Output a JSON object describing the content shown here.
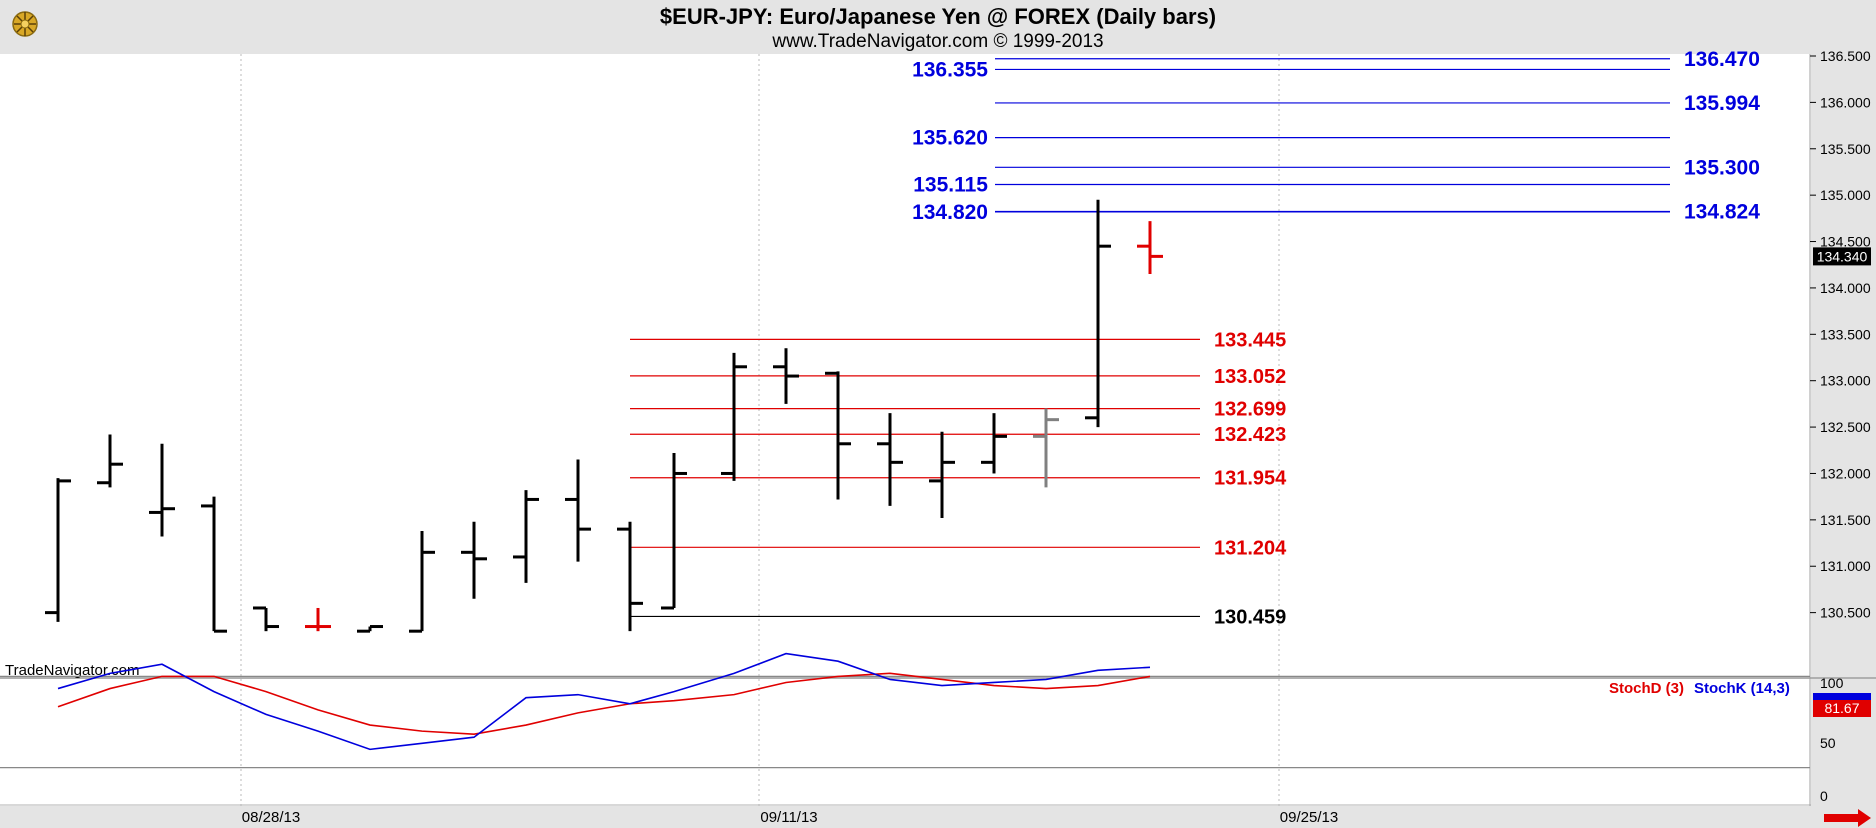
{
  "title": "$EUR-JPY:  Euro/Japanese Yen @ FOREX  (Daily bars)",
  "subtitle": "www.TradeNavigator.com © 1999-2013",
  "watermark": "TradeNavigator.com",
  "last_price": "134.340",
  "colors": {
    "up_bar": "#000000",
    "down_bar": "#e00000",
    "partial_bar": "#808080",
    "blue_level": "#0000dd",
    "red_level": "#e00000",
    "stoch_d": "#e00000",
    "stoch_k": "#0000dd"
  },
  "chart_data": [
    {
      "type": "ohlc",
      "title": "$EUR-JPY:  Euro/Japanese Yen @ FOREX  (Daily bars)",
      "y_ticks": [
        "136.500",
        "136.000",
        "135.500",
        "135.000",
        "134.500",
        "134.000",
        "133.500",
        "133.000",
        "132.500",
        "132.000",
        "131.500",
        "131.000",
        "130.500"
      ],
      "x_ticks": [
        "08/28/13",
        "09/11/13",
        "09/25/13"
      ],
      "ylim": [
        130.4,
        136.7
      ],
      "bars": [
        {
          "o": 130.5,
          "h": 131.95,
          "l": 130.4,
          "c": 131.92,
          "color": "up"
        },
        {
          "o": 131.9,
          "h": 132.42,
          "l": 131.85,
          "c": 132.1,
          "color": "up"
        },
        {
          "o": 131.58,
          "h": 132.32,
          "l": 131.32,
          "c": 131.62,
          "color": "up"
        },
        {
          "o": 131.65,
          "h": 131.75,
          "l": 130.3,
          "c": 130.3,
          "color": "up"
        },
        {
          "o": 130.55,
          "h": 130.55,
          "l": 130.3,
          "c": 130.35,
          "color": "up"
        },
        {
          "o": 130.35,
          "h": 130.55,
          "l": 130.3,
          "c": 130.35,
          "color": "down"
        },
        {
          "o": 130.3,
          "h": 130.35,
          "l": 130.3,
          "c": 130.35,
          "color": "up"
        },
        {
          "o": 130.3,
          "h": 131.38,
          "l": 130.3,
          "c": 131.15,
          "color": "up"
        },
        {
          "o": 131.15,
          "h": 131.48,
          "l": 130.65,
          "c": 131.08,
          "color": "up"
        },
        {
          "o": 131.1,
          "h": 131.82,
          "l": 130.82,
          "c": 131.72,
          "color": "up"
        },
        {
          "o": 131.72,
          "h": 132.15,
          "l": 131.05,
          "c": 131.4,
          "color": "up"
        },
        {
          "o": 131.4,
          "h": 131.48,
          "l": 130.3,
          "c": 130.6,
          "color": "up"
        },
        {
          "o": 130.55,
          "h": 132.22,
          "l": 130.55,
          "c": 132.0,
          "color": "up"
        },
        {
          "o": 132.0,
          "h": 133.3,
          "l": 131.92,
          "c": 133.15,
          "color": "up"
        },
        {
          "o": 133.15,
          "h": 133.35,
          "l": 132.75,
          "c": 133.05,
          "color": "up"
        },
        {
          "o": 133.08,
          "h": 133.1,
          "l": 131.72,
          "c": 132.32,
          "color": "up"
        },
        {
          "o": 132.32,
          "h": 132.65,
          "l": 131.65,
          "c": 132.12,
          "color": "up"
        },
        {
          "o": 131.92,
          "h": 132.45,
          "l": 131.52,
          "c": 132.12,
          "color": "up"
        },
        {
          "o": 132.12,
          "h": 132.65,
          "l": 132.0,
          "c": 132.4,
          "color": "up"
        },
        {
          "o": 132.4,
          "h": 132.7,
          "l": 131.85,
          "c": 132.58,
          "color": "partial"
        },
        {
          "o": 132.6,
          "h": 134.95,
          "l": 132.5,
          "c": 134.45,
          "color": "up"
        },
        {
          "o": 134.45,
          "h": 134.72,
          "l": 134.15,
          "c": 134.34,
          "color": "down"
        }
      ],
      "levels_blue_left": [
        "136.355",
        "135.620",
        "135.115",
        "134.820"
      ],
      "levels_blue_right": [
        "136.470",
        "135.994",
        "135.300",
        "134.824"
      ],
      "levels_red": [
        "133.445",
        "133.052",
        "132.699",
        "132.423",
        "131.954",
        "131.204"
      ],
      "level_black": "130.459"
    },
    {
      "type": "line",
      "title": "StochD (3)  StochK (14,3)",
      "series": [
        {
          "name": "StochD (3)",
          "values": [
            60,
            72,
            80,
            80,
            70,
            58,
            48,
            44,
            42,
            48,
            56,
            62,
            64,
            68,
            76,
            80,
            82,
            78,
            74,
            72,
            74,
            80
          ]
        },
        {
          "name": "StochK (14,3)",
          "values": [
            72,
            82,
            88,
            70,
            55,
            44,
            32,
            36,
            40,
            66,
            68,
            62,
            70,
            82,
            95,
            90,
            78,
            74,
            76,
            78,
            84,
            86
          ]
        }
      ],
      "y_ticks": [
        "100",
        "50",
        "0"
      ],
      "last_value": "81.67",
      "ylim": [
        0,
        100
      ]
    }
  ]
}
